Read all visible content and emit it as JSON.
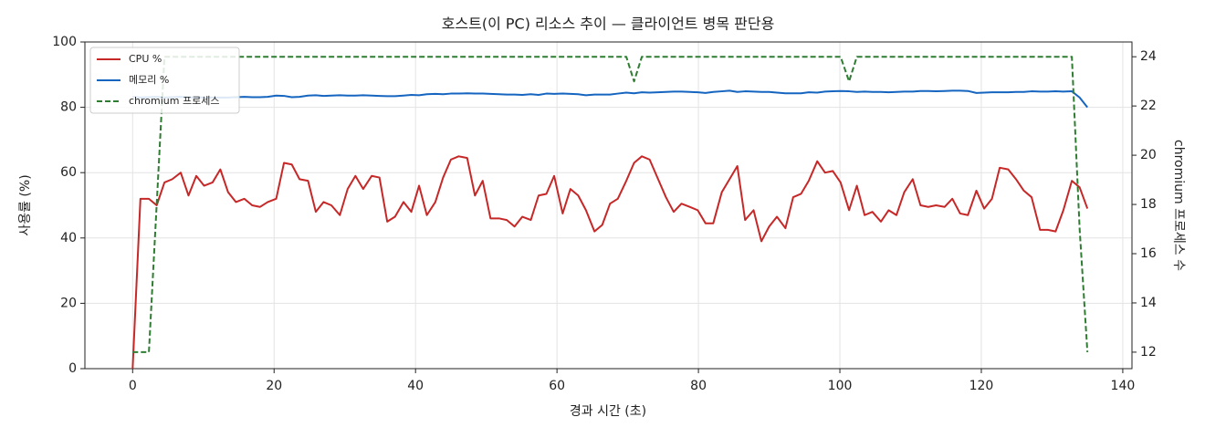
{
  "chart_data": {
    "type": "line",
    "title": "호스트(이 PC) 리소스 추이 — 클라이언트 병목 판단용",
    "x_label": "경과 시간 (초)",
    "y_label": "사용률 (%)",
    "y2_label": "chromium 프로세스 수",
    "x": [
      0,
      1.1,
      2.3,
      3.4,
      4.5,
      5.6,
      6.8,
      7.9,
      9,
      10.1,
      11.3,
      12.4,
      13.5,
      14.6,
      15.8,
      16.9,
      18,
      19.1,
      20.3,
      21.4,
      22.5,
      23.6,
      24.8,
      25.9,
      27,
      28.1,
      29.3,
      30.4,
      31.5,
      32.6,
      33.8,
      34.9,
      36,
      37.1,
      38.3,
      39.4,
      40.5,
      41.6,
      42.8,
      43.9,
      45,
      46.1,
      47.3,
      48.4,
      49.5,
      50.6,
      51.8,
      52.9,
      54,
      55.1,
      56.3,
      57.4,
      58.5,
      59.6,
      60.8,
      61.9,
      63,
      64.1,
      65.3,
      66.4,
      67.5,
      68.6,
      69.8,
      70.9,
      72,
      73.1,
      74.3,
      75.4,
      76.5,
      77.6,
      78.8,
      79.9,
      81,
      82.1,
      83.3,
      84.4,
      85.5,
      86.6,
      87.8,
      88.9,
      90,
      91.1,
      92.3,
      93.4,
      94.5,
      95.6,
      96.8,
      97.9,
      99,
      100.1,
      101.3,
      102.4,
      103.5,
      104.6,
      105.8,
      106.9,
      108,
      109.1,
      110.3,
      111.4,
      112.5,
      113.6,
      114.8,
      115.9,
      117,
      118.1,
      119.3,
      120.4,
      121.5,
      122.6,
      123.8,
      124.9,
      126,
      127.1,
      128.3,
      129.4,
      130.5,
      131.6,
      132.8,
      133.9,
      135
    ],
    "series": [
      {
        "name": "CPU %",
        "color": "#c62828",
        "axis": "y",
        "dash": false,
        "values": [
          0,
          52,
          52,
          50,
          57,
          58,
          60,
          53,
          59,
          56,
          57,
          61,
          54,
          51,
          52,
          50,
          49.5,
          51,
          52,
          63,
          62.5,
          58,
          57.5,
          48,
          51,
          50,
          47,
          55,
          59,
          55,
          59,
          58.5,
          45,
          46.5,
          51,
          48,
          56,
          47,
          51,
          58.5,
          64,
          65,
          64.5,
          53,
          57.5,
          46,
          46,
          45.5,
          43.5,
          46.5,
          45.5,
          53,
          53.5,
          59,
          47.5,
          55,
          53,
          48.5,
          42,
          44,
          50.5,
          52,
          57.5,
          63,
          65,
          64,
          58,
          52.5,
          48,
          50.5,
          49.5,
          48.5,
          44.5,
          44.5,
          54,
          58,
          62,
          45.5,
          48.5,
          39,
          43.5,
          46.5,
          43,
          52.5,
          53.5,
          57.5,
          63.5,
          60,
          60.5,
          57,
          48.5,
          56,
          47,
          48,
          45,
          48.5,
          47,
          54,
          58,
          50,
          49.5,
          50,
          49.5,
          52,
          47.5,
          47,
          54.5,
          49,
          52,
          61.5,
          61,
          58,
          54.5,
          52.5,
          42.5,
          42.5,
          42,
          48.5,
          57.5,
          55.5,
          49
        ]
      },
      {
        "name": "메모리 %",
        "color": "#1565c0",
        "axis": "y",
        "dash": false,
        "values": [
          83.2,
          83.0,
          83.1,
          83.2,
          83.0,
          83.1,
          83.2,
          83.0,
          83.1,
          83.0,
          83.0,
          83.0,
          83.0,
          83.1,
          83.2,
          83.1,
          83.1,
          83.2,
          83.6,
          83.5,
          83.1,
          83.2,
          83.6,
          83.7,
          83.5,
          83.6,
          83.7,
          83.6,
          83.6,
          83.7,
          83.6,
          83.5,
          83.4,
          83.4,
          83.6,
          83.8,
          83.7,
          84.0,
          84.1,
          84.0,
          84.2,
          84.2,
          84.3,
          84.2,
          84.2,
          84.1,
          84.0,
          83.9,
          83.9,
          83.8,
          84.0,
          83.8,
          84.2,
          84.1,
          84.2,
          84.1,
          84.0,
          83.7,
          83.9,
          83.9,
          83.9,
          84.2,
          84.5,
          84.3,
          84.6,
          84.5,
          84.6,
          84.7,
          84.8,
          84.8,
          84.7,
          84.6,
          84.4,
          84.7,
          84.9,
          85.1,
          84.7,
          84.9,
          84.8,
          84.7,
          84.7,
          84.5,
          84.3,
          84.3,
          84.3,
          84.6,
          84.5,
          84.8,
          84.9,
          85.0,
          84.9,
          84.7,
          84.8,
          84.7,
          84.7,
          84.6,
          84.7,
          84.8,
          84.8,
          85.0,
          85.0,
          84.9,
          85.0,
          85.1,
          85.1,
          85.0,
          84.4,
          84.5,
          84.6,
          84.6,
          84.6,
          84.7,
          84.7,
          84.9,
          84.8,
          84.8,
          84.9,
          84.8,
          84.9,
          83.0,
          80.0
        ]
      },
      {
        "name": "chromium 프로세스",
        "color": "#2e7d32",
        "axis": "y2",
        "dash": true,
        "values": [
          12,
          12,
          12,
          18,
          24,
          24,
          24,
          24,
          24,
          24,
          24,
          24,
          24,
          24,
          24,
          24,
          24,
          24,
          24,
          24,
          24,
          24,
          24,
          24,
          24,
          24,
          24,
          24,
          24,
          24,
          24,
          24,
          24,
          24,
          24,
          24,
          24,
          24,
          24,
          24,
          24,
          24,
          24,
          24,
          24,
          24,
          24,
          24,
          24,
          24,
          24,
          24,
          24,
          24,
          24,
          24,
          24,
          24,
          24,
          24,
          24,
          24,
          24,
          23,
          24,
          24,
          24,
          24,
          24,
          24,
          24,
          24,
          24,
          24,
          24,
          24,
          24,
          24,
          24,
          24,
          24,
          24,
          24,
          24,
          24,
          24,
          24,
          24,
          24,
          24,
          23,
          24,
          24,
          24,
          24,
          24,
          24,
          24,
          24,
          24,
          24,
          24,
          24,
          24,
          24,
          24,
          24,
          24,
          24,
          24,
          24,
          24,
          24,
          24,
          24,
          24,
          24,
          24,
          24,
          17,
          12
        ]
      }
    ],
    "xlim": [
      -6.75,
      141.3
    ],
    "xticks": [
      0,
      20,
      40,
      60,
      80,
      100,
      120,
      140
    ],
    "ylim": [
      0,
      100
    ],
    "yticks": [
      0,
      20,
      40,
      60,
      80,
      100
    ],
    "y2lim": [
      11.33,
      24.6
    ],
    "y2ticks": [
      12,
      14,
      16,
      18,
      20,
      22,
      24
    ],
    "grid": true,
    "legend": "upper-left"
  }
}
